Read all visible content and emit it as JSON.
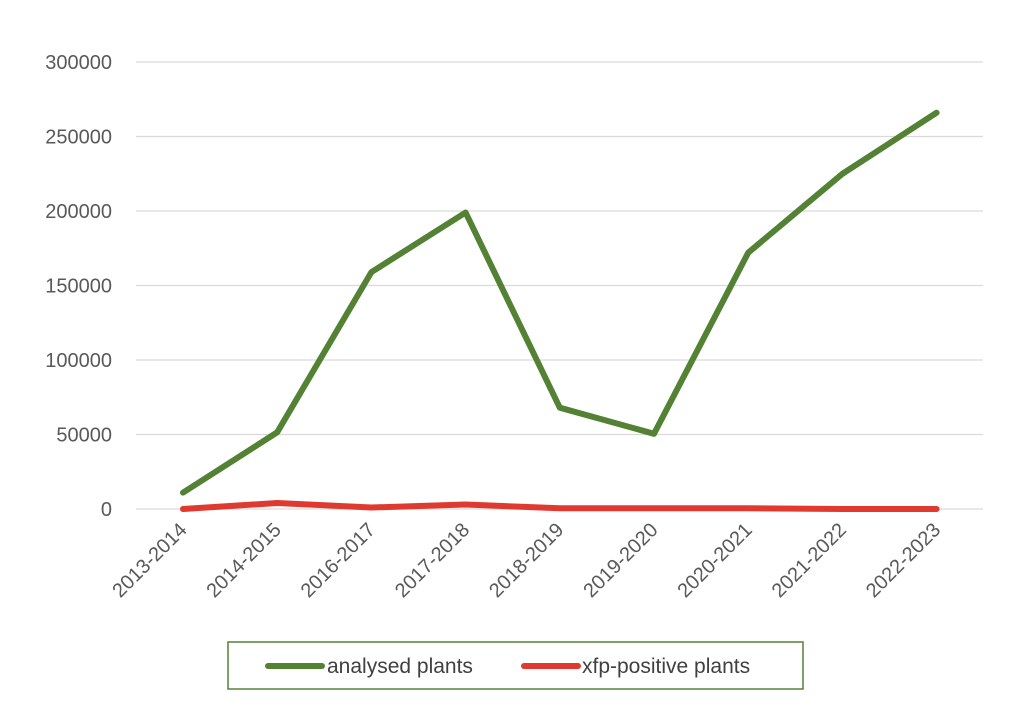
{
  "chart_data": {
    "type": "line",
    "title": "",
    "xlabel": "",
    "ylabel": "",
    "categories": [
      "2013-2014",
      "2014-2015",
      "2016-2017",
      "2017-2018",
      "2018-2019",
      "2019-2020",
      "2020-2021",
      "2021-2022",
      "2022-2023"
    ],
    "ylim": [
      0,
      300000
    ],
    "yticks": [
      0,
      50000,
      100000,
      150000,
      200000,
      250000,
      300000
    ],
    "ytick_labels": [
      "0",
      "50000",
      "100000",
      "150000",
      "200000",
      "250000",
      "300000"
    ],
    "grid": "horizontal",
    "legend": "bottom",
    "series": [
      {
        "name": "analysed plants",
        "color": "#548235",
        "values": [
          11000,
          51500,
          159000,
          199000,
          68000,
          50500,
          172000,
          225000,
          266000
        ]
      },
      {
        "name": "xfp-positive plants",
        "color": "#e03a30",
        "values": [
          0,
          4000,
          1000,
          3000,
          500,
          500,
          500,
          0,
          0
        ]
      }
    ]
  }
}
